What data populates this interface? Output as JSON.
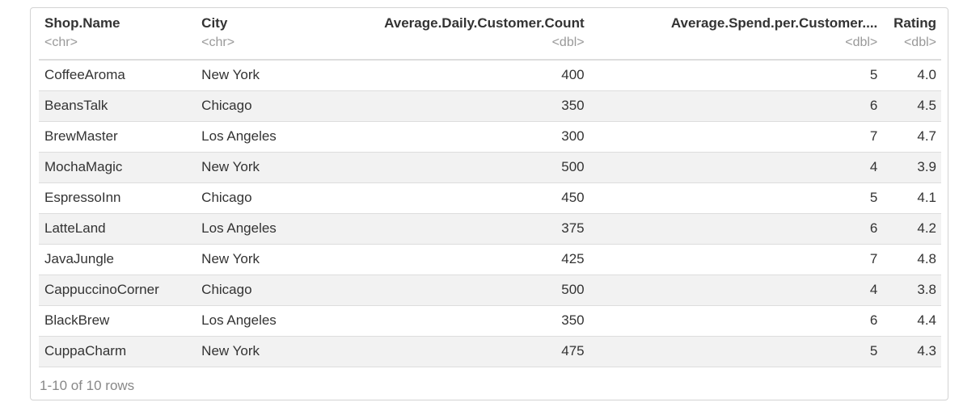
{
  "table": {
    "columns": [
      {
        "name": "Shop.Name",
        "type": "<chr>",
        "align": "left"
      },
      {
        "name": "City",
        "type": "<chr>",
        "align": "left"
      },
      {
        "name": "Average.Daily.Customer.Count",
        "type": "<dbl>",
        "align": "right"
      },
      {
        "name": "Average.Spend.per.Customer....",
        "type": "<dbl>",
        "align": "right"
      },
      {
        "name": "Rating",
        "type": "<dbl>",
        "align": "right"
      }
    ],
    "rows": [
      [
        "CoffeeAroma",
        "New York",
        "400",
        "5",
        "4.0"
      ],
      [
        "BeansTalk",
        "Chicago",
        "350",
        "6",
        "4.5"
      ],
      [
        "BrewMaster",
        "Los Angeles",
        "300",
        "7",
        "4.7"
      ],
      [
        "MochaMagic",
        "New York",
        "500",
        "4",
        "3.9"
      ],
      [
        "EspressoInn",
        "Chicago",
        "450",
        "5",
        "4.1"
      ],
      [
        "LatteLand",
        "Los Angeles",
        "375",
        "6",
        "4.2"
      ],
      [
        "JavaJungle",
        "New York",
        "425",
        "7",
        "4.8"
      ],
      [
        "CappuccinoCorner",
        "Chicago",
        "500",
        "4",
        "3.8"
      ],
      [
        "BlackBrew",
        "Los Angeles",
        "350",
        "6",
        "4.4"
      ],
      [
        "CuppaCharm",
        "New York",
        "475",
        "5",
        "4.3"
      ]
    ]
  },
  "footer": {
    "row_count_text": "1-10 of 10 rows"
  }
}
